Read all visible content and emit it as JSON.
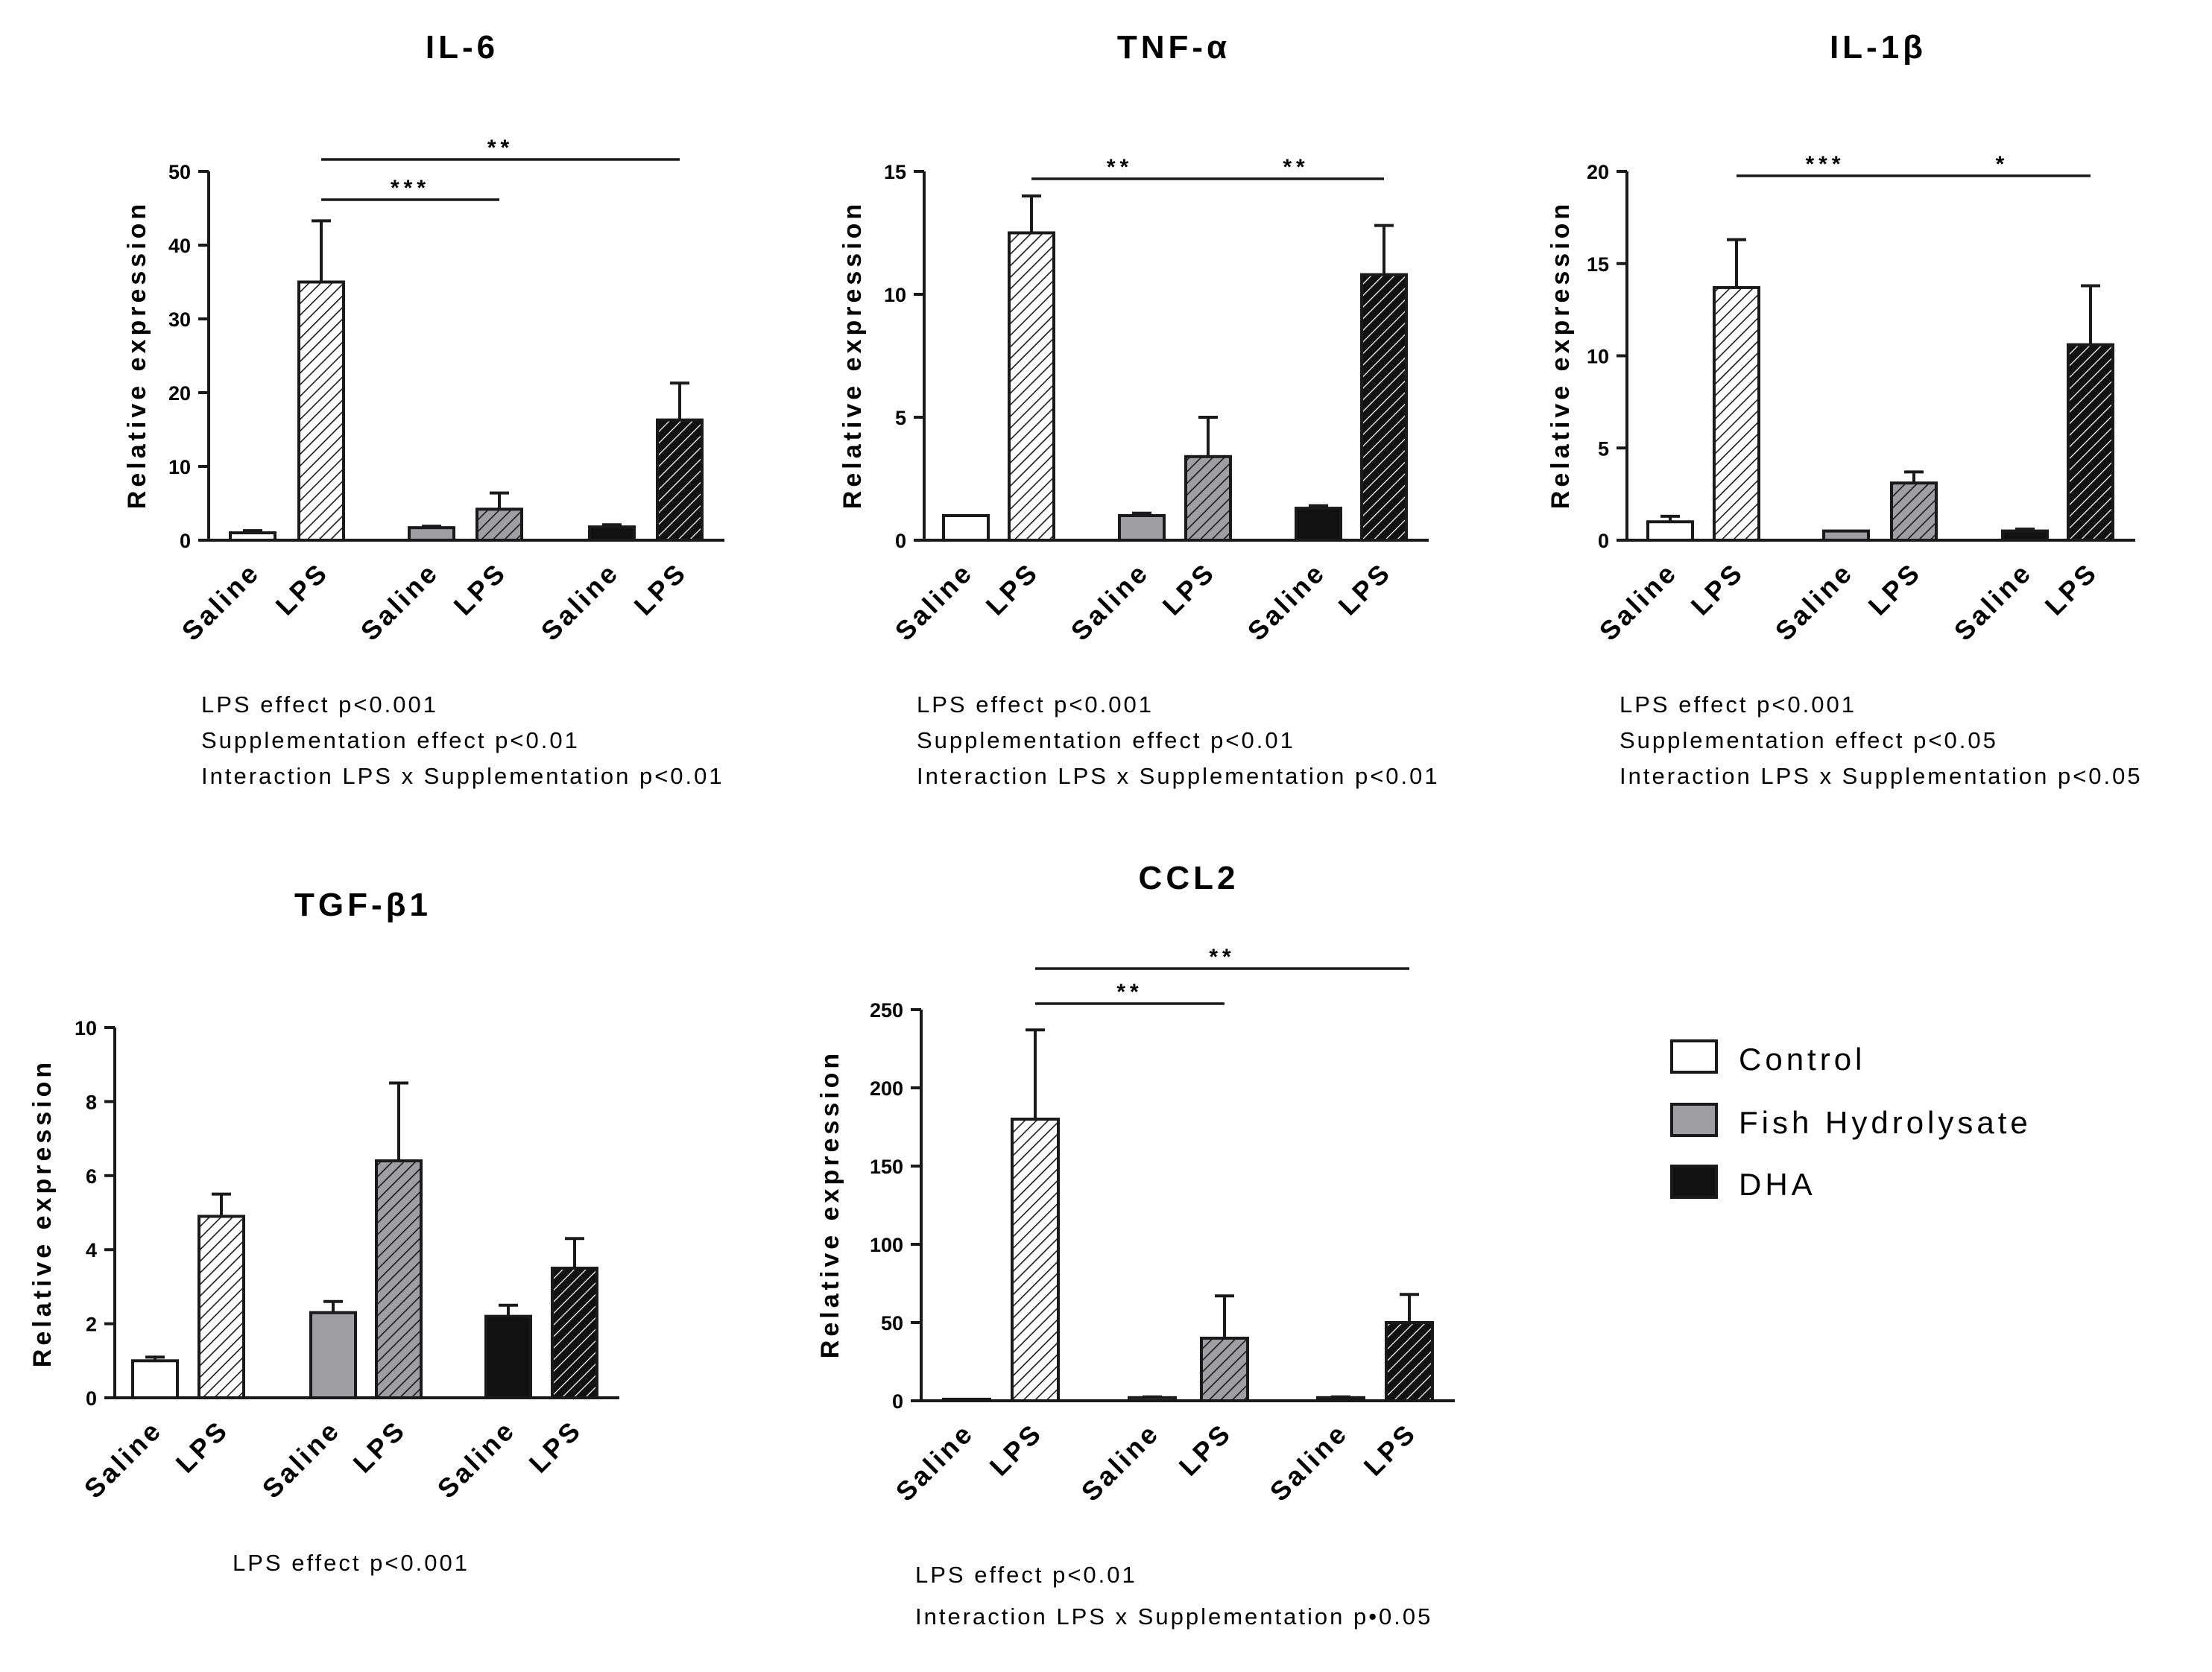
{
  "colors": {
    "control": "#ffffff",
    "fish": "#9e9ea3",
    "dha": "#111111",
    "axis": "#1a1a1a"
  },
  "legend": [
    {
      "key": "control",
      "label": "Control"
    },
    {
      "key": "fish",
      "label": "Fish Hydrolysate"
    },
    {
      "key": "dha",
      "label": "DHA"
    }
  ],
  "chart_data": [
    {
      "type": "bar",
      "title": "IL-6",
      "ylabel": "Relative expression",
      "ylim": [
        0,
        50
      ],
      "yticks": [
        0,
        10,
        20,
        30,
        40,
        50
      ],
      "categories": [
        "Saline",
        "LPS",
        "Saline",
        "LPS",
        "Saline",
        "LPS"
      ],
      "groups": [
        "control",
        "control",
        "fish",
        "fish",
        "dha",
        "dha"
      ],
      "values": [
        1.0,
        35.0,
        1.7,
        4.2,
        1.8,
        16.3
      ],
      "errors": [
        0.3,
        8.3,
        0.2,
        2.2,
        0.3,
        5.0
      ],
      "significance": [
        {
          "from": 1,
          "to": 3,
          "label": "***"
        },
        {
          "from": 1,
          "to": 5,
          "label": "**"
        }
      ],
      "notes": [
        "LPS effect p<0.001",
        "Supplementation effect p<0.01",
        "Interaction LPS x Supplementation p<0.01"
      ]
    },
    {
      "type": "bar",
      "title": "TNF-α",
      "ylabel": "Relative expression",
      "ylim": [
        0,
        15
      ],
      "yticks": [
        0,
        5,
        10,
        15
      ],
      "categories": [
        "Saline",
        "LPS",
        "Saline",
        "LPS",
        "Saline",
        "LPS"
      ],
      "groups": [
        "control",
        "control",
        "fish",
        "fish",
        "dha",
        "dha"
      ],
      "values": [
        1.0,
        12.5,
        1.0,
        3.4,
        1.3,
        10.8
      ],
      "errors": [
        0.0,
        1.5,
        0.1,
        1.6,
        0.1,
        2.0
      ],
      "significance": [
        {
          "from": 1,
          "to": 3,
          "label": "**"
        },
        {
          "from": 3,
          "to": 5,
          "label": "**"
        }
      ],
      "notes": [
        "LPS effect p<0.001",
        "Supplementation effect p<0.01",
        "Interaction LPS x Supplementation p<0.01"
      ]
    },
    {
      "type": "bar",
      "title": "IL-1β",
      "ylabel": "Relative expression",
      "ylim": [
        0,
        20
      ],
      "yticks": [
        0,
        5,
        10,
        15,
        20
      ],
      "categories": [
        "Saline",
        "LPS",
        "Saline",
        "LPS",
        "Saline",
        "LPS"
      ],
      "groups": [
        "control",
        "control",
        "fish",
        "fish",
        "dha",
        "dha"
      ],
      "values": [
        1.0,
        13.7,
        0.5,
        3.1,
        0.5,
        10.6
      ],
      "errors": [
        0.3,
        2.6,
        0.0,
        0.6,
        0.1,
        3.2
      ],
      "significance": [
        {
          "from": 1,
          "to": 3,
          "label": "***"
        },
        {
          "from": 3,
          "to": 5,
          "label": "*"
        }
      ],
      "notes": [
        "LPS effect p<0.001",
        "Supplementation effect p<0.05",
        "Interaction LPS x Supplementation p<0.05"
      ]
    },
    {
      "type": "bar",
      "title": "TGF-β1",
      "ylabel": "Relative expression",
      "ylim": [
        0,
        10
      ],
      "yticks": [
        0,
        2,
        4,
        6,
        8,
        10
      ],
      "categories": [
        "Saline",
        "LPS",
        "Saline",
        "LPS",
        "Saline",
        "LPS"
      ],
      "groups": [
        "control",
        "control",
        "fish",
        "fish",
        "dha",
        "dha"
      ],
      "values": [
        1.0,
        4.9,
        2.3,
        6.4,
        2.2,
        3.5
      ],
      "errors": [
        0.1,
        0.6,
        0.3,
        2.1,
        0.3,
        0.8
      ],
      "significance": [],
      "notes": [
        "LPS effect p<0.001"
      ]
    },
    {
      "type": "bar",
      "title": "CCL2",
      "ylabel": "Relative expression",
      "ylim": [
        0,
        250
      ],
      "yticks": [
        0,
        50,
        100,
        150,
        200,
        250
      ],
      "categories": [
        "Saline",
        "LPS",
        "Saline",
        "LPS",
        "Saline",
        "LPS"
      ],
      "groups": [
        "control",
        "control",
        "fish",
        "fish",
        "dha",
        "dha"
      ],
      "values": [
        1.0,
        180.0,
        2.0,
        40.0,
        2.0,
        50.0
      ],
      "errors": [
        0.0,
        57.0,
        0.5,
        27.0,
        0.5,
        18.0
      ],
      "significance": [
        {
          "from": 1,
          "to": 3,
          "label": "**"
        },
        {
          "from": 1,
          "to": 5,
          "label": "**"
        }
      ],
      "notes": [
        "LPS effect p<0.01",
        "Interaction LPS x Supplementation p•0.05"
      ]
    }
  ]
}
